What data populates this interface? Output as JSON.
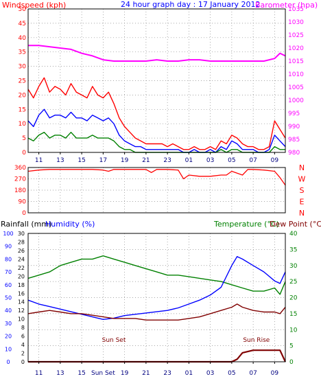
{
  "chart_data": [
    {
      "type": "line",
      "title": "24 hour graph day : 17 January 2012",
      "left_label": "Windspeed (kph)",
      "right_label": "Barometer (hpa)",
      "left_ticks": [
        0,
        5,
        10,
        15,
        20,
        25,
        30,
        35,
        40,
        45,
        50
      ],
      "right_ticks": [
        980,
        985,
        990,
        995,
        1000,
        1005,
        1010,
        1015,
        1020,
        1025,
        1030,
        1035
      ],
      "x_ticks": [
        "11",
        "13",
        "15",
        "17",
        "19",
        "21",
        "23",
        "01",
        "03",
        "05",
        "07",
        "09"
      ],
      "series": [
        {
          "key": "gust",
          "color": "#ff0000",
          "axis": "left",
          "x": [
            10,
            10.5,
            11,
            11.5,
            12,
            12.5,
            13,
            13.5,
            14,
            14.5,
            15,
            15.5,
            16,
            16.5,
            17,
            17.5,
            18,
            18.5,
            19,
            19.5,
            20,
            20.5,
            21,
            21.5,
            22,
            22.5,
            23,
            23.5,
            24,
            24.5,
            25,
            25.5,
            26,
            26.5,
            27,
            27.5,
            28,
            28.5,
            29,
            29.5,
            30,
            30.5,
            31,
            31.5,
            32,
            32.5,
            33,
            33.5,
            34
          ],
          "y": [
            22,
            19,
            23,
            26,
            21,
            23,
            22,
            20,
            24,
            21,
            20,
            19,
            23,
            20,
            19,
            21,
            17,
            12,
            9,
            7,
            5,
            4,
            3,
            3,
            3,
            3,
            2,
            3,
            2,
            1,
            1,
            2,
            1,
            1,
            2,
            1,
            4,
            3,
            6,
            5,
            3,
            2,
            2,
            1,
            1,
            2,
            11,
            8,
            5
          ]
        },
        {
          "key": "avg",
          "color": "#0000ff",
          "axis": "left",
          "x": [
            10,
            10.5,
            11,
            11.5,
            12,
            12.5,
            13,
            13.5,
            14,
            14.5,
            15,
            15.5,
            16,
            16.5,
            17,
            17.5,
            18,
            18.5,
            19,
            19.5,
            20,
            20.5,
            21,
            21.5,
            22,
            22.5,
            23,
            23.5,
            24,
            24.5,
            25,
            25.5,
            26,
            26.5,
            27,
            27.5,
            28,
            28.5,
            29,
            29.5,
            30,
            30.5,
            31,
            31.5,
            32,
            32.5,
            33,
            33.5,
            34
          ],
          "y": [
            11,
            9,
            13,
            15,
            12,
            13,
            13,
            12,
            14,
            12,
            12,
            11,
            13,
            12,
            11,
            12,
            10,
            6,
            4,
            3,
            2,
            2,
            1,
            1,
            1,
            1,
            1,
            1,
            1,
            0,
            0,
            1,
            0,
            0,
            1,
            0,
            2,
            1,
            4,
            3,
            1,
            1,
            1,
            0,
            0,
            1,
            6,
            4,
            2
          ]
        },
        {
          "key": "wind_low",
          "color": "#008000",
          "axis": "left",
          "x": [
            10,
            10.5,
            11,
            11.5,
            12,
            12.5,
            13,
            13.5,
            14,
            14.5,
            15,
            15.5,
            16,
            16.5,
            17,
            17.5,
            18,
            18.5,
            19,
            19.5,
            20,
            20.5,
            21,
            21.5,
            22,
            22.5,
            23,
            23.5,
            24,
            24.5,
            25,
            25.5,
            26,
            26.5,
            27,
            27.5,
            28,
            28.5,
            29,
            29.5,
            30,
            30.5,
            31,
            31.5,
            32,
            32.5,
            33,
            33.5,
            34
          ],
          "y": [
            5,
            4,
            6,
            7,
            5,
            6,
            6,
            5,
            7,
            5,
            5,
            5,
            6,
            5,
            5,
            5,
            4,
            2,
            1,
            1,
            0,
            0,
            0,
            0,
            0,
            0,
            0,
            0,
            0,
            0,
            0,
            0,
            0,
            0,
            0,
            0,
            1,
            0,
            1,
            1,
            0,
            0,
            0,
            0,
            0,
            0,
            2,
            1,
            1
          ]
        },
        {
          "key": "baro",
          "color": "#ff00ff",
          "axis": "right",
          "x": [
            10,
            11,
            12,
            13,
            14,
            15,
            16,
            17,
            18,
            19,
            20,
            21,
            22,
            23,
            24,
            25,
            26,
            27,
            28,
            29,
            30,
            31,
            32,
            33,
            33.5,
            34
          ],
          "y": [
            1021,
            1021,
            1020.5,
            1020,
            1019.5,
            1018,
            1017,
            1015.5,
            1015,
            1015,
            1015,
            1015,
            1015.5,
            1015,
            1015,
            1015.5,
            1015.5,
            1015,
            1015,
            1015,
            1015,
            1015,
            1015,
            1016,
            1018,
            1017
          ]
        }
      ]
    },
    {
      "type": "line",
      "title": "",
      "left_ticks": [
        0,
        90,
        180,
        270,
        360
      ],
      "right_labels": [
        "N",
        "W",
        "S",
        "E",
        "N"
      ],
      "x_ticks": [
        "11",
        "13",
        "15",
        "17",
        "19",
        "21",
        "23",
        "01",
        "03",
        "05",
        "07",
        "09"
      ],
      "series": [
        {
          "key": "direction",
          "color": "#ff0000",
          "x": [
            10,
            11,
            12,
            13,
            14,
            15,
            16,
            17,
            17.5,
            18,
            19,
            20,
            21,
            21.5,
            22,
            23,
            24,
            24.5,
            25,
            26,
            27,
            28,
            28.5,
            29,
            30,
            30.5,
            31,
            32,
            33,
            33.5,
            34
          ],
          "y": [
            330,
            340,
            345,
            345,
            345,
            345,
            345,
            340,
            330,
            345,
            345,
            345,
            345,
            320,
            345,
            345,
            340,
            270,
            300,
            290,
            290,
            300,
            300,
            330,
            300,
            345,
            345,
            340,
            330,
            280,
            220
          ]
        }
      ]
    },
    {
      "type": "line",
      "title": "",
      "labels_left": [
        "Rainfall (mm)",
        "Humidity (%)"
      ],
      "labels_right": [
        "Temperature (°C)",
        "Dew Point (°C)"
      ],
      "rain_ticks": [
        0,
        10,
        20,
        30,
        40,
        50,
        60,
        70,
        80,
        90,
        100
      ],
      "humidity_ticks": [
        0,
        2,
        4,
        6,
        8,
        10,
        12,
        14,
        16,
        18,
        20,
        22,
        24,
        26,
        28,
        30
      ],
      "temp_ticks": [
        0,
        5,
        10,
        15,
        20,
        25,
        30,
        35,
        40
      ],
      "x_ticks": [
        "11",
        "13",
        "15",
        "Sun Set",
        "19",
        "21",
        "23",
        "01",
        "03",
        "05",
        "07",
        "09"
      ],
      "annotations": [
        {
          "text": "Sun Set",
          "x": 18
        },
        {
          "text": "Sun Rise",
          "x": 31.3
        }
      ],
      "series": [
        {
          "key": "temperature",
          "color": "#008000",
          "axis": "temp",
          "x": [
            10,
            11,
            12,
            13,
            14,
            15,
            16,
            17,
            18,
            19,
            20,
            21,
            22,
            23,
            24,
            25,
            26,
            27,
            28,
            29,
            30,
            31,
            32,
            33,
            33.5,
            34
          ],
          "y": [
            26,
            27,
            28,
            30,
            31,
            32,
            32,
            33,
            32,
            31,
            30,
            29,
            28,
            27,
            27,
            26.5,
            26,
            25.5,
            25,
            24,
            23,
            22,
            22,
            23,
            21,
            25
          ]
        },
        {
          "key": "humidity",
          "color": "#0000ff",
          "axis": "rain",
          "x": [
            10,
            11,
            12,
            13,
            14,
            15,
            16,
            17,
            18,
            19,
            20,
            21,
            22,
            23,
            24,
            25,
            26,
            27,
            28,
            29,
            29.5,
            30,
            31,
            32,
            33,
            33.5,
            34
          ],
          "y": [
            48,
            45,
            43,
            41,
            39,
            37,
            35,
            33,
            34,
            36,
            37,
            38,
            39,
            40,
            42,
            45,
            48,
            52,
            58,
            75,
            82,
            80,
            75,
            70,
            63,
            61,
            70
          ]
        },
        {
          "key": "dew_point",
          "color": "#800000",
          "axis": "temp",
          "x": [
            10,
            11,
            12,
            13,
            14,
            15,
            16,
            17,
            18,
            19,
            20,
            21,
            22,
            23,
            24,
            25,
            26,
            27,
            28,
            29,
            29.5,
            30,
            31,
            32,
            33,
            33.5,
            34
          ],
          "y": [
            15,
            15.5,
            16,
            15.5,
            15,
            15,
            14.5,
            14,
            13.5,
            13.5,
            13.5,
            13,
            13,
            13,
            13,
            13.5,
            14,
            15,
            16,
            17,
            18,
            17,
            16,
            15.5,
            15.5,
            15,
            17
          ]
        },
        {
          "key": "rain",
          "color": "#800000",
          "axis": "rain",
          "x": [
            10,
            20,
            29,
            29.5,
            30,
            31,
            32,
            33,
            33.5,
            34
          ],
          "y": [
            0,
            0,
            0,
            2,
            7,
            9,
            9,
            9,
            9,
            0
          ]
        }
      ]
    }
  ]
}
